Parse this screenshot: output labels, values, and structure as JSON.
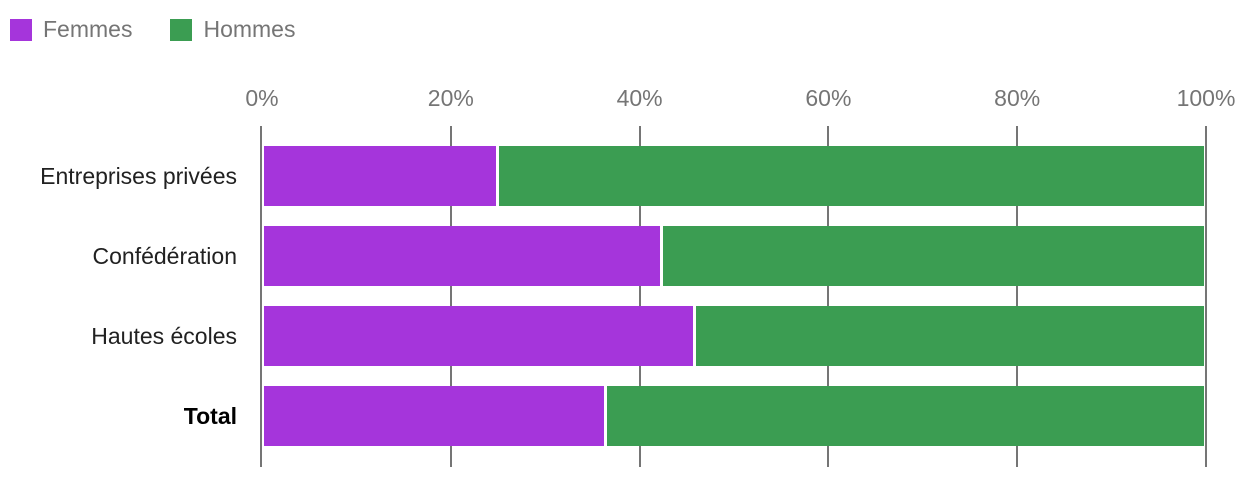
{
  "chart_data": {
    "type": "bar",
    "orientation": "horizontal",
    "stacked": true,
    "title": "",
    "xlabel": "",
    "ylabel": "",
    "categories": [
      "Entreprises privées",
      "Confédération",
      "Hautes écoles",
      "Total"
    ],
    "emphasized_category": "Total",
    "series": [
      {
        "name": "Femmes",
        "color": "#A535DB",
        "values": [
          24.7,
          42.1,
          45.6,
          36.2
        ]
      },
      {
        "name": "Hommes",
        "color": "#3B9D52",
        "values": [
          75.3,
          57.9,
          54.4,
          63.8
        ]
      }
    ],
    "xlim": [
      0,
      100
    ],
    "xticks": [
      "0%",
      "20%",
      "40%",
      "60%",
      "80%",
      "100%"
    ],
    "xtick_values": [
      0,
      20,
      40,
      60,
      80,
      100
    ],
    "grid": "vertical",
    "legend_position": "top-left",
    "gridline_color": "#757575",
    "axis_text_color": "#757575",
    "category_text_color": "#212121",
    "background_color": "#ffffff"
  }
}
